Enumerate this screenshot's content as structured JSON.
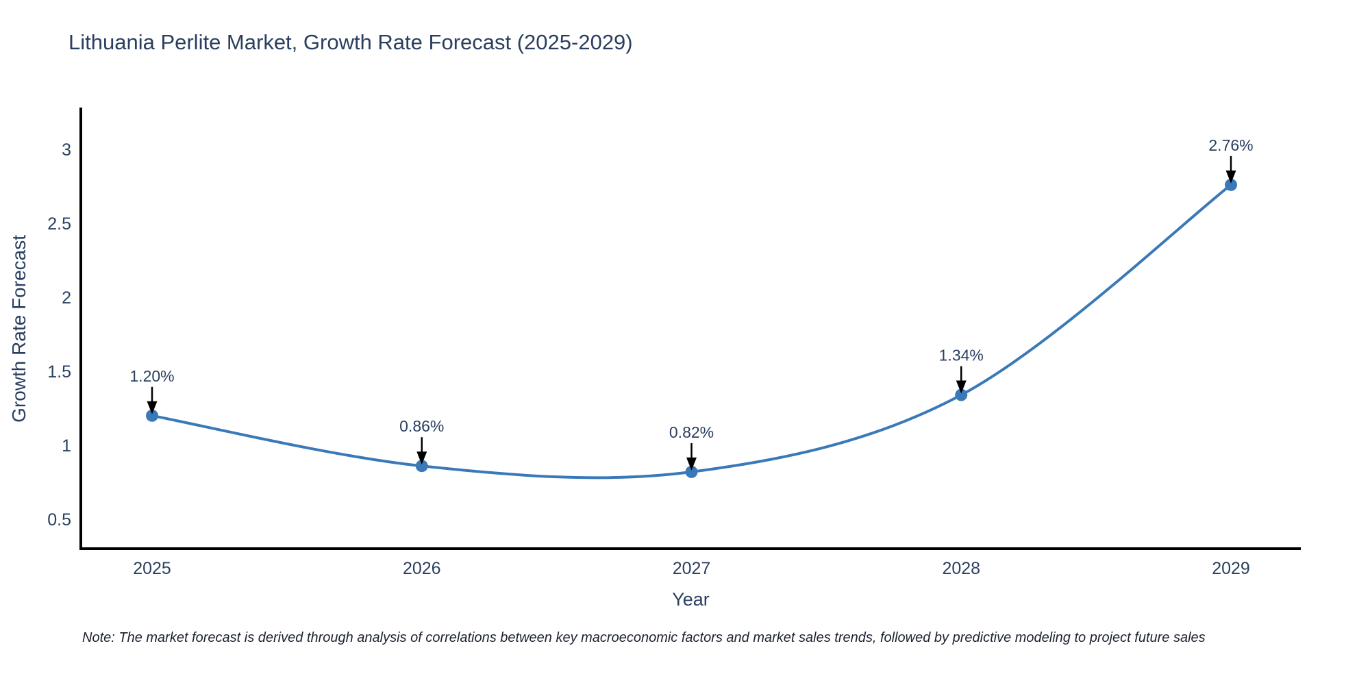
{
  "title": "Lithuania Perlite Market, Growth Rate Forecast (2025-2029)",
  "footnote": "Note: The market forecast is derived through analysis of correlations between key macroeconomic factors and market sales trends, followed by predictive modeling to project future sales",
  "chart_data": {
    "type": "line",
    "title": "Lithuania Perlite Market, Growth Rate Forecast (2025-2029)",
    "xlabel": "Year",
    "ylabel": "Growth Rate Forecast",
    "line_shape": "spline",
    "categories": [
      "2025",
      "2026",
      "2027",
      "2028",
      "2029"
    ],
    "values": [
      1.2,
      0.86,
      0.82,
      1.34,
      2.76
    ],
    "point_labels": [
      "1.20%",
      "0.86%",
      "0.82%",
      "1.34%",
      "2.76%"
    ],
    "yticks": [
      0.5,
      1,
      1.5,
      2,
      2.5,
      3
    ],
    "ylim": [
      0.3,
      3.35
    ],
    "grid": false,
    "legend": "none",
    "annotation_style": "arrow-down-to-point",
    "colors": {
      "line": "#3a79b8",
      "marker": "#3a79b8",
      "axis": "#000000",
      "tick_text": "#2a3f5f",
      "annotation_text": "#2a3f5f",
      "annotation_arrow": "#000000",
      "note_text": "#1c2230",
      "background": "#ffffff"
    }
  }
}
